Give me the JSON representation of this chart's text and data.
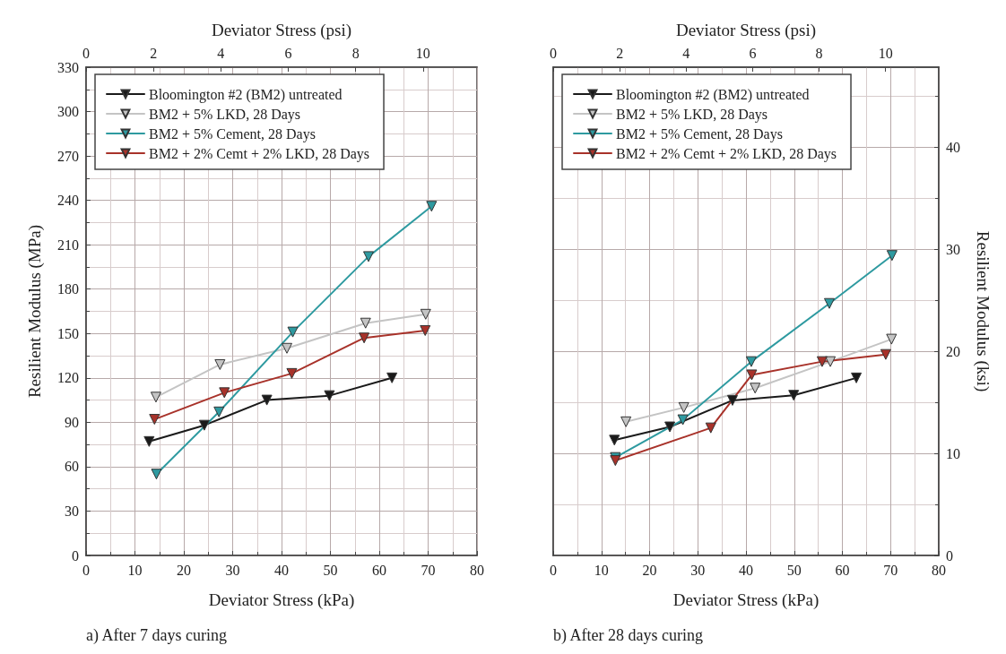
{
  "chart_data": [
    {
      "type": "line",
      "xlabel": "Deviator Stress (kPa)",
      "x2label": "Deviator Stress (psi)",
      "ylabel": "Resilient Modulus (MPa)",
      "annotations": [
        "a) After 7 days curing"
      ],
      "xlim": [
        0,
        80
      ],
      "xticks": [
        0,
        10,
        20,
        30,
        40,
        50,
        60,
        70,
        80
      ],
      "x2lim": [
        0,
        11.6
      ],
      "x2ticks": [
        0,
        2,
        4,
        6,
        8,
        10
      ],
      "ylim": [
        0,
        330
      ],
      "yticks": [
        0,
        30,
        60,
        90,
        120,
        150,
        180,
        210,
        240,
        270,
        300,
        330
      ],
      "grid": true,
      "legend": "top left",
      "marker": "triangle",
      "line_style": "solid",
      "series": [
        {
          "name": "Bloomington #2 (BM2) untreated",
          "color": "#1a1a1a",
          "x": [
            12.9,
            24.2,
            37.0,
            49.8,
            62.6
          ],
          "values": [
            77,
            88,
            105,
            108,
            120
          ]
        },
        {
          "name": "BM2 + 5% LKD, 28 Days",
          "color": "#c4c4c4",
          "x": [
            14.3,
            27.4,
            41.1,
            57.2,
            69.5
          ],
          "values": [
            107,
            129,
            140,
            157,
            163
          ]
        },
        {
          "name": "BM2 + 5% Cement, 28 Days",
          "color": "#2e9aa0",
          "x": [
            14.4,
            27.2,
            42.3,
            57.8,
            70.7
          ],
          "values": [
            55,
            97,
            151,
            202,
            236
          ]
        },
        {
          "name": "BM2 + 2% Cemt + 2% LKD, 28 Days",
          "color": "#a8322a",
          "x": [
            14.0,
            28.3,
            42.1,
            56.9,
            69.4
          ],
          "values": [
            92,
            110,
            123,
            147,
            152
          ]
        }
      ]
    },
    {
      "type": "line",
      "xlabel": "Deviator Stress (kPa)",
      "x2label": "Deviator Stress (psi)",
      "y2label": "Resilient Modulus (ksi)",
      "annotations": [
        "b) After 28 days curing"
      ],
      "xlim": [
        0,
        80
      ],
      "xticks": [
        0,
        10,
        20,
        30,
        40,
        50,
        60,
        70,
        80
      ],
      "x2lim": [
        0,
        11.6
      ],
      "x2ticks": [
        0,
        2,
        4,
        6,
        8,
        10
      ],
      "y2lim": [
        0,
        47.86
      ],
      "y2ticks": [
        0,
        10,
        20,
        30,
        40
      ],
      "grid": true,
      "legend": "top left",
      "marker": "triangle",
      "line_style": "solid",
      "series": [
        {
          "name": "Bloomington #2 (BM2) untreated",
          "color": "#1a1a1a",
          "axis": "y2",
          "x": [
            12.7,
            24.2,
            37.2,
            49.9,
            62.9
          ],
          "values": [
            11.3,
            12.6,
            15.2,
            15.7,
            17.4
          ]
        },
        {
          "name": "BM2 + 5% LKD, 28 Days",
          "color": "#c4c4c4",
          "axis": "y2",
          "x": [
            15.1,
            27.1,
            41.9,
            57.5,
            70.2
          ],
          "values": [
            13.1,
            14.5,
            16.4,
            19.0,
            21.2
          ]
        },
        {
          "name": "BM2 + 5% Cement, 28 Days",
          "color": "#2e9aa0",
          "axis": "y2",
          "x": [
            12.9,
            26.9,
            41.1,
            57.3,
            70.3
          ],
          "values": [
            9.6,
            13.3,
            19.0,
            24.7,
            29.4
          ]
        },
        {
          "name": "BM2 + 2% Cemt + 2% LKD, 28 Days",
          "color": "#a8322a",
          "axis": "y2",
          "x": [
            12.9,
            32.7,
            41.2,
            55.8,
            69.0
          ],
          "values": [
            9.3,
            12.5,
            17.7,
            19.0,
            19.7
          ]
        }
      ]
    }
  ]
}
